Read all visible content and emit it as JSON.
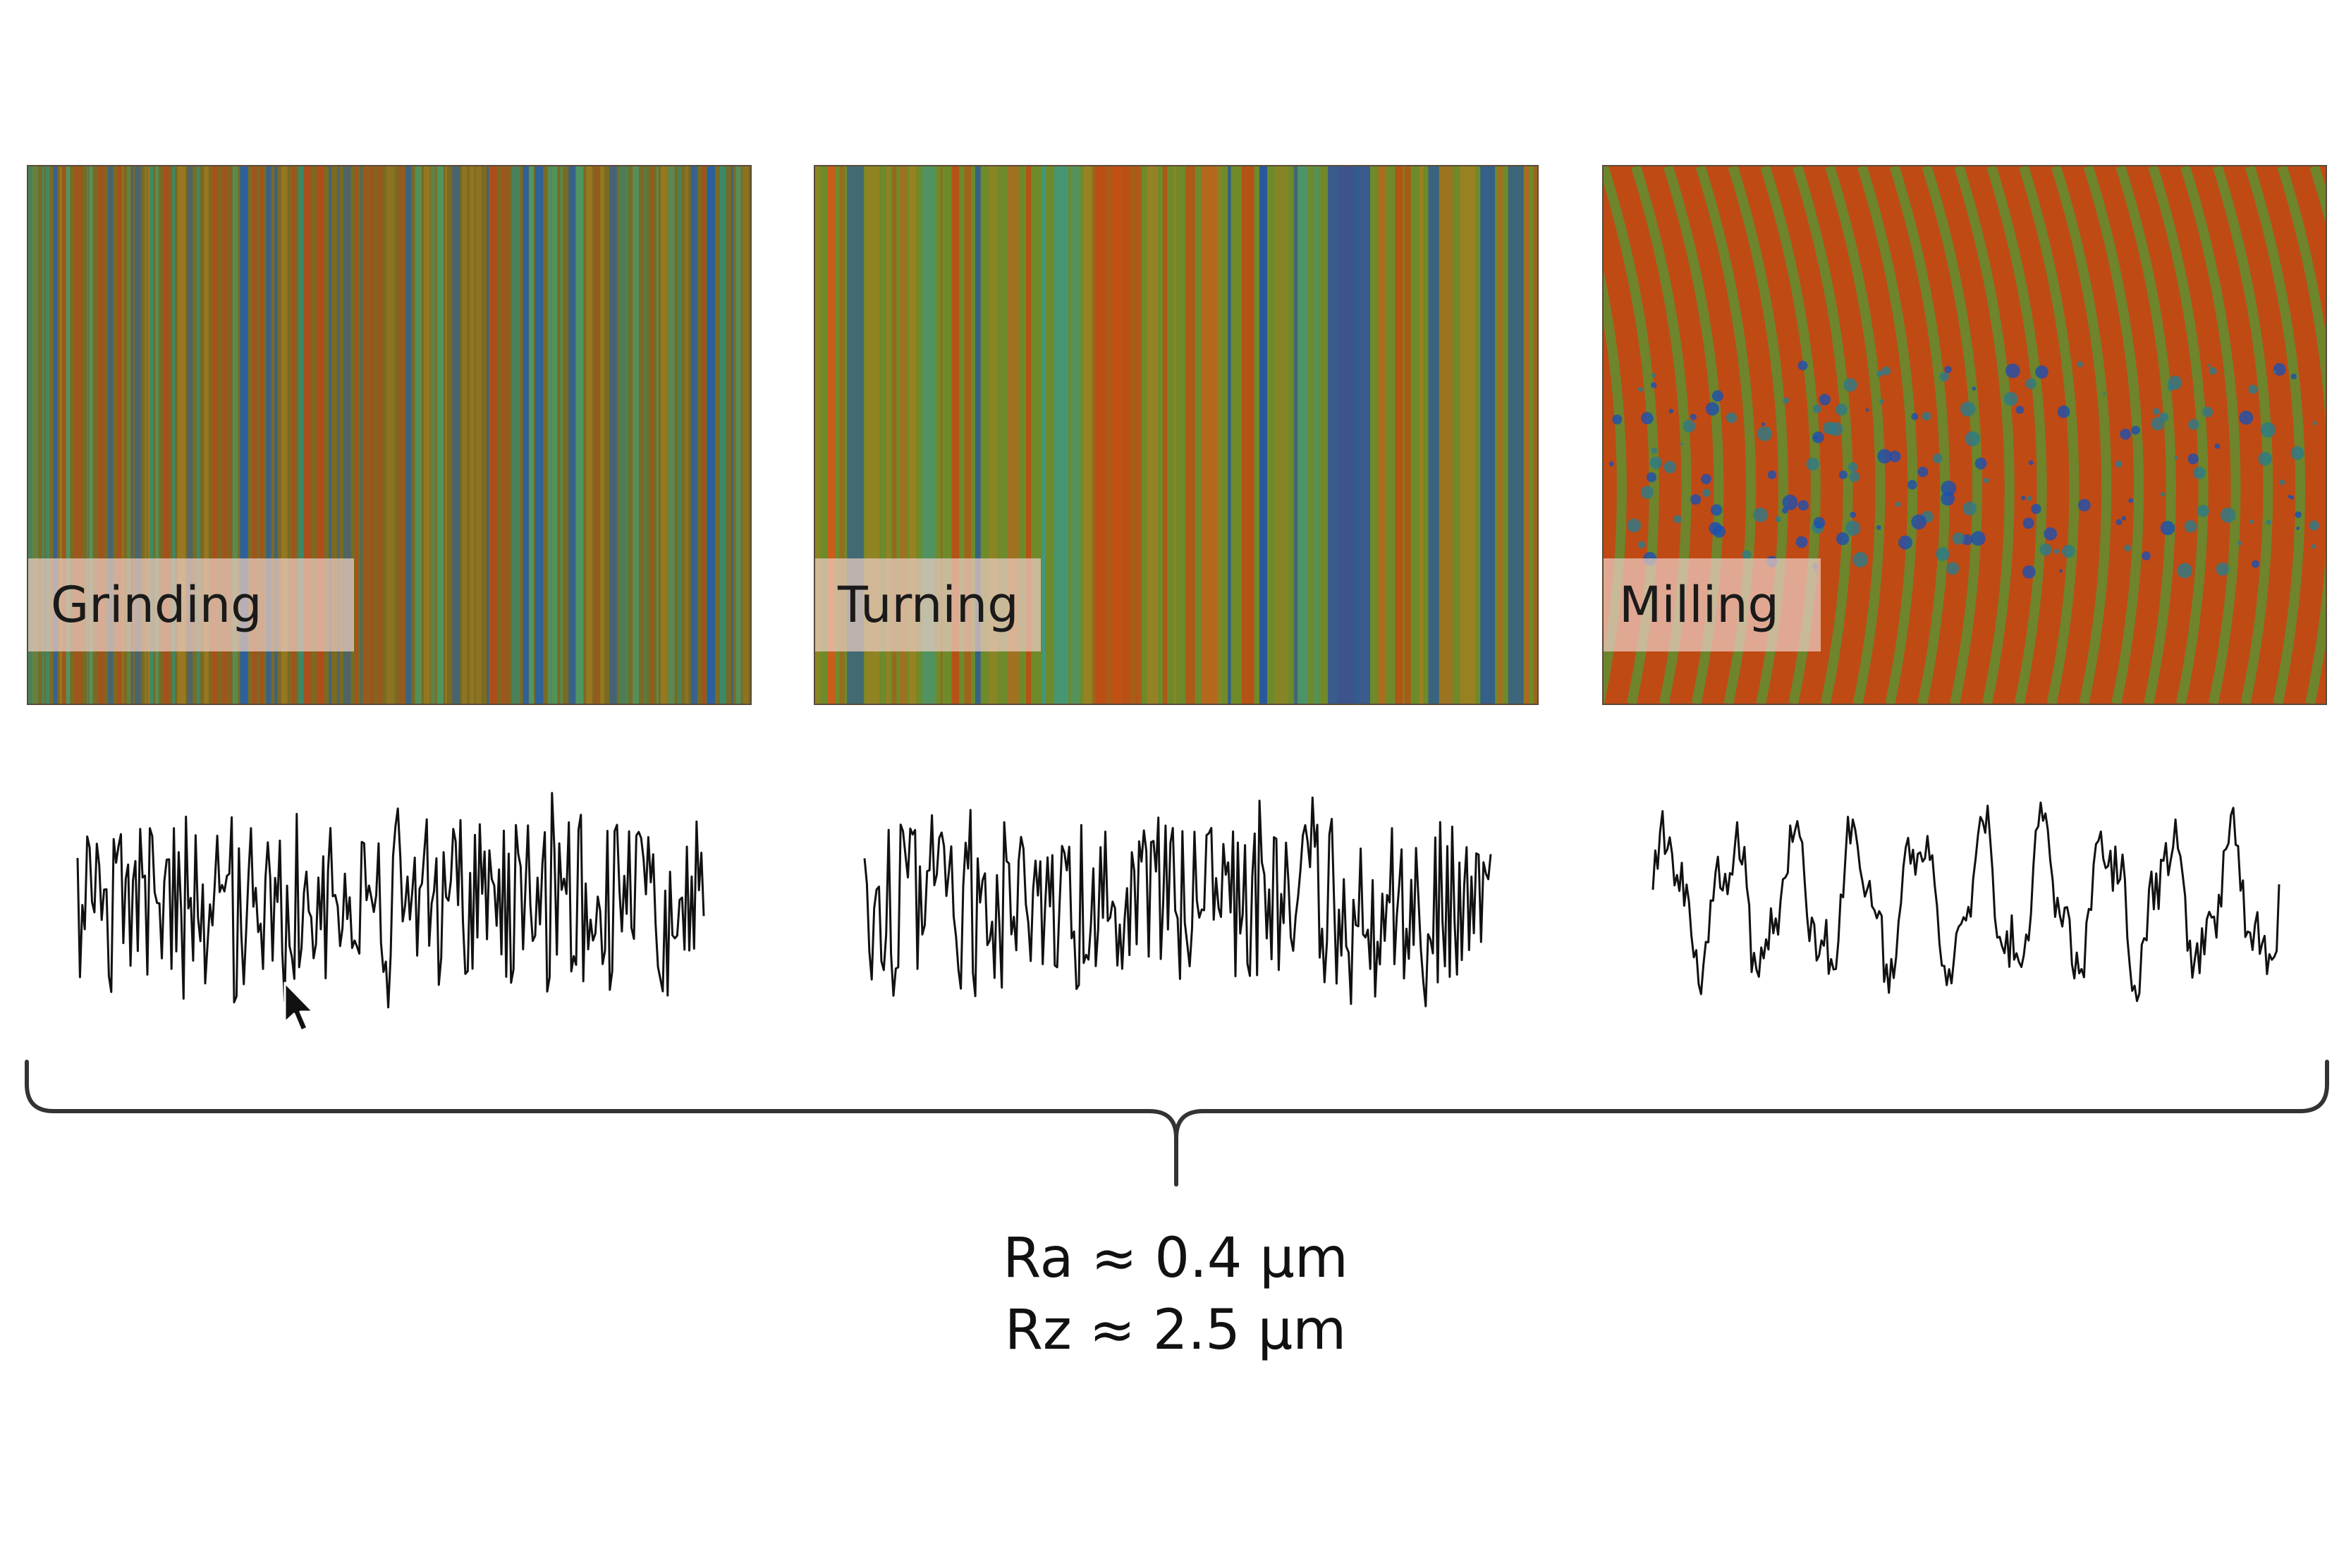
{
  "panels": [
    {
      "label": "Grinding",
      "colors": {
        "base": "#7a6a22",
        "stripes": [
          "#b24a1a",
          "#2f8f7a",
          "#2560a8",
          "#9a7a20",
          "#4a9a6a"
        ]
      },
      "seed": 11,
      "profile_seed": 3
    },
    {
      "label": "Turning",
      "colors": {
        "base": "#6e8a2a",
        "stripes": [
          "#c04a12",
          "#3a9a8a",
          "#1c4fb0",
          "#a08020",
          "#d05a18"
        ]
      },
      "seed": 27,
      "profile_seed": 8
    },
    {
      "label": "Milling",
      "colors": {
        "base": "#c04a14",
        "stripes": [
          "#5f8f30",
          "#2a7a8a",
          "#1c4fb0"
        ]
      },
      "seed": 43,
      "profile_seed": 19
    }
  ],
  "formulas": {
    "ra": "Ra ≈ 0.4 µm",
    "rz": "Rz ≈ 2.5 µm"
  },
  "icons": {
    "cursor": "mouse-pointer-icon",
    "brace": "curly-brace"
  }
}
